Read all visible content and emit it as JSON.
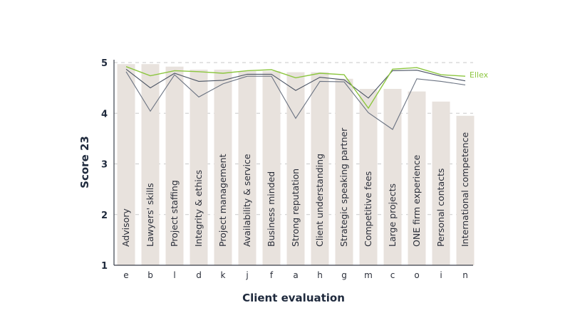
{
  "chart_data": {
    "type": "bar",
    "xlabel": "Client evaluation",
    "ylabel": "Score 23",
    "ylim": [
      1,
      5
    ],
    "yticks": [
      1,
      2,
      3,
      4,
      5
    ],
    "grid": true,
    "categories": [
      "e",
      "b",
      "l",
      "d",
      "k",
      "j",
      "f",
      "a",
      "h",
      "g",
      "m",
      "c",
      "o",
      "i",
      "n"
    ],
    "category_names": [
      "Advisory",
      "Lawyers' skills",
      "Project staffing",
      "Integrity & ethics",
      "Project management",
      "Availability & service",
      "Business minded",
      "Strong reputation",
      "Client understanding",
      "Strategic speaking partner",
      "Competitive fees",
      "Large projects",
      "ONE firm experience",
      "Personal contacts",
      "International competence"
    ],
    "values": [
      4.97,
      4.97,
      4.92,
      4.86,
      4.86,
      4.83,
      4.83,
      4.81,
      4.81,
      4.68,
      4.48,
      4.48,
      4.43,
      4.23,
      3.95
    ],
    "series": [
      {
        "name": "Ellex",
        "type": "line",
        "color": "#8cc63f",
        "values": [
          4.92,
          4.74,
          4.84,
          4.82,
          4.79,
          4.84,
          4.86,
          4.7,
          4.79,
          4.76,
          4.1,
          4.87,
          4.9,
          4.76,
          4.73
        ]
      },
      {
        "name": "",
        "type": "line",
        "color": "#4a5363",
        "values": [
          4.87,
          4.5,
          4.79,
          4.63,
          4.65,
          4.77,
          4.77,
          4.45,
          4.71,
          4.66,
          4.3,
          4.84,
          4.85,
          4.73,
          4.64
        ]
      },
      {
        "name": "",
        "type": "line",
        "color": "#6b7382",
        "values": [
          4.82,
          4.04,
          4.76,
          4.32,
          4.58,
          4.73,
          4.73,
          3.9,
          4.63,
          4.62,
          4.01,
          3.68,
          4.68,
          4.63,
          4.56
        ]
      }
    ]
  },
  "colors": {
    "bar": "#e8e2dd",
    "grid": "#c9c9c9",
    "axis": "#3a3f4a"
  }
}
